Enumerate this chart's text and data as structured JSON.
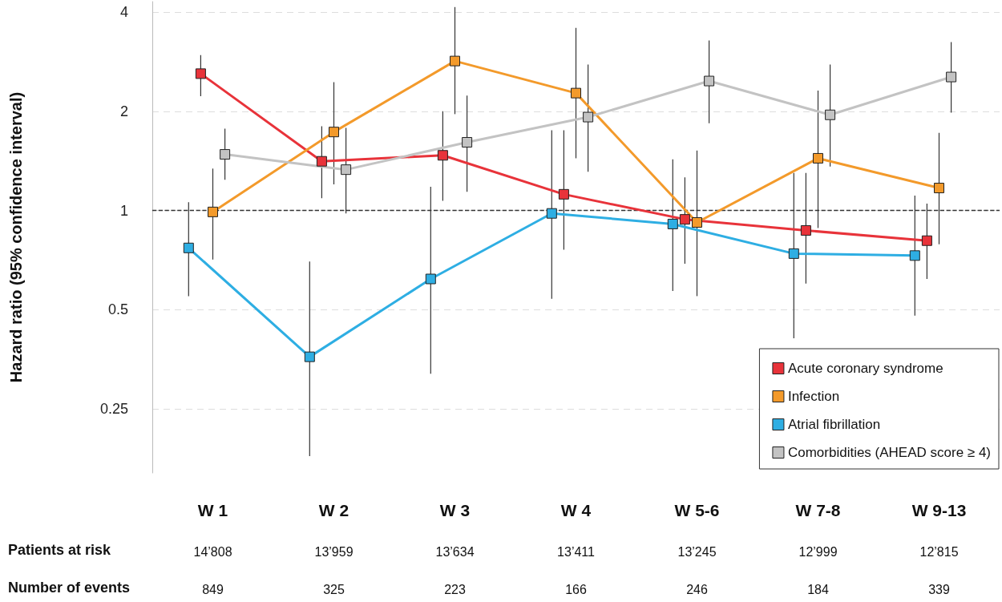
{
  "chart_data": {
    "type": "line",
    "ylabel": "Hazard ratio (95% confidence interval)",
    "categories": [
      "W 1",
      "W 2",
      "W 3",
      "W 4",
      "W 5-6",
      "W 7-8",
      "W 9-13"
    ],
    "series": [
      {
        "name": "Acute coronary syndrome",
        "color": "#e8333a",
        "values": [
          2.6,
          1.41,
          1.47,
          1.12,
          0.94,
          0.87,
          0.81
        ],
        "errors": [
          [
            2.22,
            2.96
          ],
          [
            1.09,
            1.8
          ],
          [
            1.07,
            2.0
          ],
          [
            0.76,
            1.75
          ],
          [
            0.69,
            1.26
          ],
          [
            0.6,
            1.3
          ],
          [
            0.62,
            1.05
          ]
        ]
      },
      {
        "name": "Infection",
        "color": "#f39a2b",
        "values": [
          0.99,
          1.73,
          2.84,
          2.27,
          0.92,
          1.44,
          1.17
        ],
        "errors": [
          [
            0.71,
            1.34
          ],
          [
            1.2,
            2.45
          ],
          [
            1.96,
            4.14
          ],
          [
            1.44,
            3.58
          ],
          [
            0.55,
            1.52
          ],
          [
            0.885,
            2.31
          ],
          [
            0.79,
            1.72
          ]
        ]
      },
      {
        "name": "Atrial fibrillation",
        "color": "#2eaee3",
        "values": [
          0.77,
          0.36,
          0.62,
          0.98,
          0.91,
          0.74,
          0.73
        ],
        "errors": [
          [
            0.55,
            1.06
          ],
          [
            0.18,
            0.7
          ],
          [
            0.32,
            1.18
          ],
          [
            0.54,
            1.75
          ],
          [
            0.57,
            1.43
          ],
          [
            0.41,
            1.3
          ],
          [
            0.48,
            1.11
          ]
        ]
      },
      {
        "name": "Comorbidities (AHEAD score ≥ 4)",
        "color": "#c3c3c3",
        "values": [
          1.48,
          1.33,
          1.61,
          1.92,
          2.47,
          1.95,
          2.54
        ],
        "errors": [
          [
            1.24,
            1.77
          ],
          [
            0.98,
            1.78
          ],
          [
            1.14,
            2.23
          ],
          [
            1.31,
            2.77
          ],
          [
            1.84,
            3.28
          ],
          [
            1.36,
            2.77
          ],
          [
            1.98,
            3.24
          ]
        ]
      }
    ],
    "log": "y",
    "ylim": [
      0.16,
      4.3
    ],
    "yticks": [
      0.25,
      0.5,
      1,
      2,
      4
    ],
    "grid": "y",
    "ref_lines": [
      {
        "axis": "y",
        "value": 1,
        "label": null,
        "color": "#333333",
        "line_style": "dashed"
      }
    ],
    "marker": "square",
    "legend": "bottom right",
    "annotations": [
      "Patients at risk",
      "14’808",
      "13’959",
      "13’634",
      "13’411",
      "13’245",
      "12’999",
      "12’815",
      "Number of events",
      "849",
      "325",
      "223",
      "166",
      "246",
      "184",
      "339"
    ]
  }
}
